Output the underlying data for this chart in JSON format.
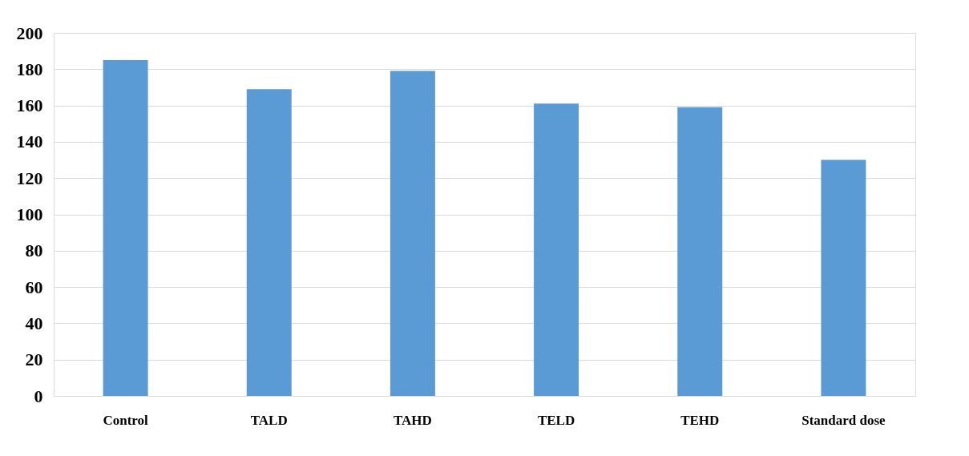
{
  "chart_data": {
    "type": "bar",
    "categories": [
      "Control",
      "TALD",
      "TAHD",
      "TELD",
      "TEHD",
      "Standard dose"
    ],
    "values": [
      185,
      169,
      179,
      161,
      159,
      130
    ],
    "color": "#5b9bd5",
    "ylim": [
      0,
      200
    ],
    "yticks": [
      0,
      20,
      40,
      60,
      80,
      100,
      120,
      140,
      160,
      180,
      200
    ],
    "grid": "y"
  }
}
